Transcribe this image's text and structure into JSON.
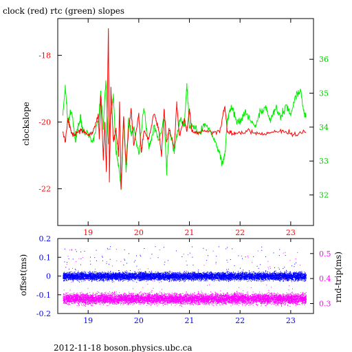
{
  "title": "clock (red) rtc (green) slopes",
  "footer": "2012-11-18  boson.physics.ubc.ca",
  "colors": {
    "clock": "#ff0000",
    "rtc": "#00ee00",
    "offset": "#0000ff",
    "rndtrip": "#ff00ff",
    "frame": "#000000"
  },
  "chart_data": [
    {
      "type": "line",
      "series": [
        {
          "name": "clock (red)",
          "axis": "left",
          "color": "#ff0000"
        },
        {
          "name": "rtc (green)",
          "axis": "right",
          "color": "#00ee00"
        }
      ],
      "ylabel": "clockslope",
      "x_ticks": [
        "19",
        "20",
        "21",
        "22",
        "23"
      ],
      "x_tick_values": [
        19,
        20,
        21,
        22,
        23
      ],
      "xlim": [
        18.4,
        23.45
      ],
      "y_left_ticks": [
        "-18",
        "-20",
        "-22"
      ],
      "y_left_tick_values": [
        -18,
        -20,
        -22
      ],
      "y_left_lim": [
        -23.1,
        -16.9
      ],
      "y_right_ticks": [
        "32",
        "33",
        "34",
        "35",
        "36"
      ],
      "y_right_tick_values": [
        32,
        33,
        34,
        35,
        36
      ],
      "y_right_lim": [
        31.1,
        37.2
      ],
      "clock_points": [
        [
          18.5,
          -20.3
        ],
        [
          18.55,
          -20.6
        ],
        [
          18.6,
          -19.9
        ],
        [
          18.65,
          -20.2
        ],
        [
          18.7,
          -20.4
        ],
        [
          18.8,
          -20.3
        ],
        [
          18.9,
          -20.25
        ],
        [
          19.0,
          -20.4
        ],
        [
          19.1,
          -20.3
        ],
        [
          19.2,
          -19.8
        ],
        [
          19.22,
          -20.5
        ],
        [
          19.25,
          -19.2
        ],
        [
          19.3,
          -21.1
        ],
        [
          19.33,
          -20.0
        ],
        [
          19.36,
          -21.5
        ],
        [
          19.4,
          -17.2
        ],
        [
          19.42,
          -21.8
        ],
        [
          19.45,
          -19.0
        ],
        [
          19.5,
          -20.6
        ],
        [
          19.55,
          -20.2
        ],
        [
          19.6,
          -21.0
        ],
        [
          19.62,
          -19.4
        ],
        [
          19.65,
          -22.0
        ],
        [
          19.7,
          -19.8
        ],
        [
          19.75,
          -21.3
        ],
        [
          19.8,
          -20.2
        ],
        [
          19.85,
          -19.6
        ],
        [
          19.9,
          -20.7
        ],
        [
          20.0,
          -19.8
        ],
        [
          20.05,
          -20.9
        ],
        [
          20.1,
          -20.3
        ],
        [
          20.2,
          -20.5
        ],
        [
          20.3,
          -19.7
        ],
        [
          20.4,
          -20.3
        ],
        [
          20.45,
          -21.0
        ],
        [
          20.5,
          -19.6
        ],
        [
          20.55,
          -20.6
        ],
        [
          20.6,
          -20.2
        ],
        [
          20.7,
          -20.8
        ],
        [
          20.75,
          -19.4
        ],
        [
          20.8,
          -20.4
        ],
        [
          20.9,
          -19.9
        ],
        [
          20.95,
          -20.3
        ],
        [
          21.0,
          -19.6
        ],
        [
          21.05,
          -20.3
        ],
        [
          21.2,
          -20.3
        ],
        [
          21.4,
          -20.3
        ],
        [
          21.6,
          -20.3
        ],
        [
          21.7,
          -19.5
        ],
        [
          21.75,
          -20.3
        ],
        [
          21.9,
          -20.35
        ],
        [
          22.1,
          -20.3
        ],
        [
          22.3,
          -20.3
        ],
        [
          22.5,
          -20.35
        ],
        [
          22.7,
          -20.3
        ],
        [
          22.9,
          -20.3
        ],
        [
          23.1,
          -20.35
        ],
        [
          23.3,
          -20.3
        ]
      ],
      "rtc_points": [
        [
          18.5,
          34.4
        ],
        [
          18.55,
          35.2
        ],
        [
          18.6,
          34.1
        ],
        [
          18.65,
          34.5
        ],
        [
          18.7,
          34.2
        ],
        [
          18.75,
          33.6
        ],
        [
          18.8,
          34.0
        ],
        [
          18.85,
          34.3
        ],
        [
          18.9,
          33.9
        ],
        [
          19.0,
          33.8
        ],
        [
          19.1,
          33.6
        ],
        [
          19.2,
          34.2
        ],
        [
          19.25,
          35.0
        ],
        [
          19.3,
          34.0
        ],
        [
          19.35,
          35.4
        ],
        [
          19.4,
          33.5
        ],
        [
          19.45,
          34.4
        ],
        [
          19.5,
          34.9
        ],
        [
          19.55,
          33.3
        ],
        [
          19.6,
          32.9
        ],
        [
          19.65,
          32.2
        ],
        [
          19.7,
          34.2
        ],
        [
          19.75,
          32.7
        ],
        [
          19.8,
          34.3
        ],
        [
          19.85,
          33.8
        ],
        [
          19.9,
          34.0
        ],
        [
          20.0,
          33.2
        ],
        [
          20.1,
          34.6
        ],
        [
          20.2,
          33.4
        ],
        [
          20.3,
          34.0
        ],
        [
          20.4,
          33.6
        ],
        [
          20.5,
          34.3
        ],
        [
          20.55,
          32.7
        ],
        [
          20.6,
          33.9
        ],
        [
          20.7,
          33.3
        ],
        [
          20.8,
          34.2
        ],
        [
          20.9,
          34.1
        ],
        [
          20.95,
          35.3
        ],
        [
          21.0,
          34.0
        ],
        [
          21.1,
          34.0
        ],
        [
          21.2,
          33.8
        ],
        [
          21.3,
          34.1
        ],
        [
          21.4,
          33.9
        ],
        [
          21.5,
          33.6
        ],
        [
          21.6,
          33.2
        ],
        [
          21.65,
          32.9
        ],
        [
          21.7,
          33.2
        ],
        [
          21.75,
          34.2
        ],
        [
          21.8,
          34.5
        ],
        [
          21.85,
          34.6
        ],
        [
          21.9,
          34.3
        ],
        [
          22.0,
          34.1
        ],
        [
          22.1,
          34.5
        ],
        [
          22.2,
          34.2
        ],
        [
          22.3,
          34.0
        ],
        [
          22.4,
          34.4
        ],
        [
          22.5,
          34.6
        ],
        [
          22.6,
          34.2
        ],
        [
          22.7,
          34.6
        ],
        [
          22.8,
          34.3
        ],
        [
          22.9,
          34.6
        ],
        [
          23.0,
          34.4
        ],
        [
          23.1,
          34.9
        ],
        [
          23.2,
          35.1
        ],
        [
          23.25,
          34.5
        ],
        [
          23.3,
          34.3
        ]
      ]
    },
    {
      "type": "scatter",
      "series": [
        {
          "name": "offset(ms)",
          "axis": "left",
          "color": "#0000ff",
          "center": 0.0,
          "spread": 0.02
        },
        {
          "name": "rnd-trip(ms)",
          "axis": "right",
          "color": "#ff00ff",
          "center": 0.32,
          "spread": 0.02
        }
      ],
      "ylabel_left": "offset(ms)",
      "ylabel_right": "rnd-trip(ms)",
      "x_ticks": [
        "19",
        "20",
        "21",
        "22",
        "23"
      ],
      "x_tick_values": [
        19,
        20,
        21,
        22,
        23
      ],
      "xlim": [
        18.4,
        23.45
      ],
      "y_left_ticks": [
        "0.2",
        "0.1",
        "0",
        "-0.1",
        "-0.2"
      ],
      "y_left_tick_values": [
        0.2,
        0.1,
        0,
        -0.1,
        -0.2
      ],
      "y_left_lim": [
        -0.2,
        0.2
      ],
      "y_right_ticks": [
        "0.5",
        "0.4",
        "0.3"
      ],
      "y_right_tick_values": [
        0.5,
        0.4,
        0.3
      ],
      "y_right_lim": [
        0.26,
        0.56
      ],
      "x_range": [
        18.5,
        23.3
      ]
    }
  ]
}
